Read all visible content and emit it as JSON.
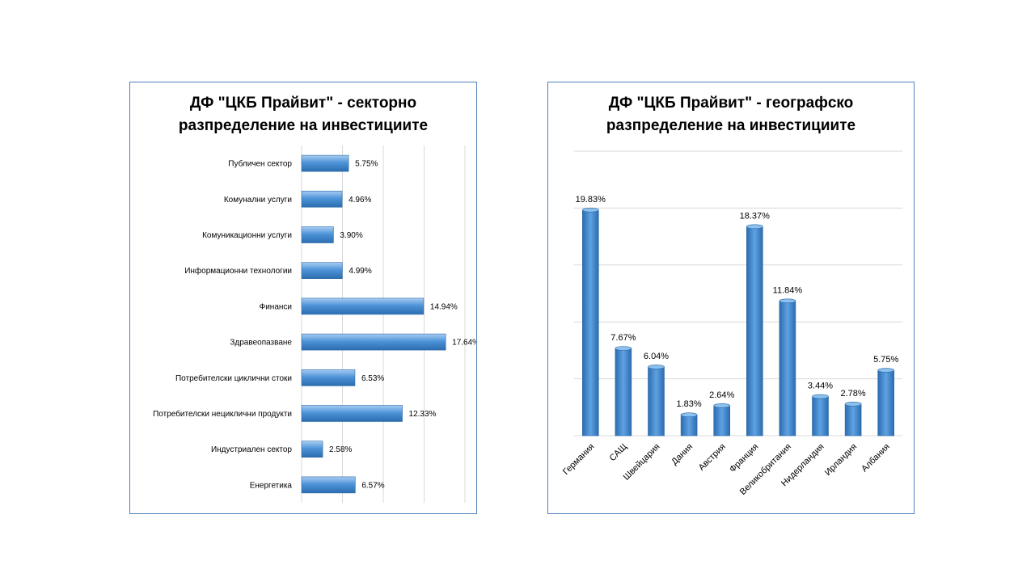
{
  "chart_data": [
    {
      "type": "bar",
      "orientation": "horizontal",
      "title_lines": [
        "ДФ \"ЦКБ Прайвит\" - секторно",
        "разпределение на инвестициите"
      ],
      "categories": [
        "Публичен сектор",
        "Комунални услуги",
        "Комуникационни услуги",
        "Информационни технологии",
        "Финанси",
        "Здравеопазване",
        "Потребителски циклични стоки",
        "Потребителски нециклични продукти",
        "Индустриален сектор",
        "Енергетика"
      ],
      "values": [
        5.75,
        4.96,
        3.9,
        4.99,
        14.94,
        17.64,
        6.53,
        12.33,
        2.58,
        6.57
      ],
      "data_labels": [
        "5.75%",
        "4.96%",
        "3.90%",
        "4.99%",
        "14.94%",
        "17.64%",
        "6.53%",
        "12.33%",
        "2.58%",
        "6.57%"
      ],
      "xlim": [
        0,
        20
      ],
      "grid": true,
      "color": "#4f94d8"
    },
    {
      "type": "bar",
      "orientation": "vertical",
      "title_lines": [
        "ДФ \"ЦКБ Прайвит\" - географско",
        "разпределение на инвестициите"
      ],
      "categories": [
        "Германия",
        "САЩ",
        "Швейцария",
        "Дания",
        "Австрия",
        "Франция",
        "Великобритания",
        "Нидерландия",
        "Ирландия",
        "Албания"
      ],
      "values": [
        19.83,
        7.67,
        6.04,
        1.83,
        2.64,
        18.37,
        11.84,
        3.44,
        2.78,
        5.75
      ],
      "data_labels": [
        "19.83%",
        "7.67%",
        "6.04%",
        "1.83%",
        "2.64%",
        "18.37%",
        "11.84%",
        "3.44%",
        "2.78%",
        "5.75%"
      ],
      "ylim": [
        0,
        25
      ],
      "grid": true,
      "color": "#4f94d8"
    }
  ]
}
